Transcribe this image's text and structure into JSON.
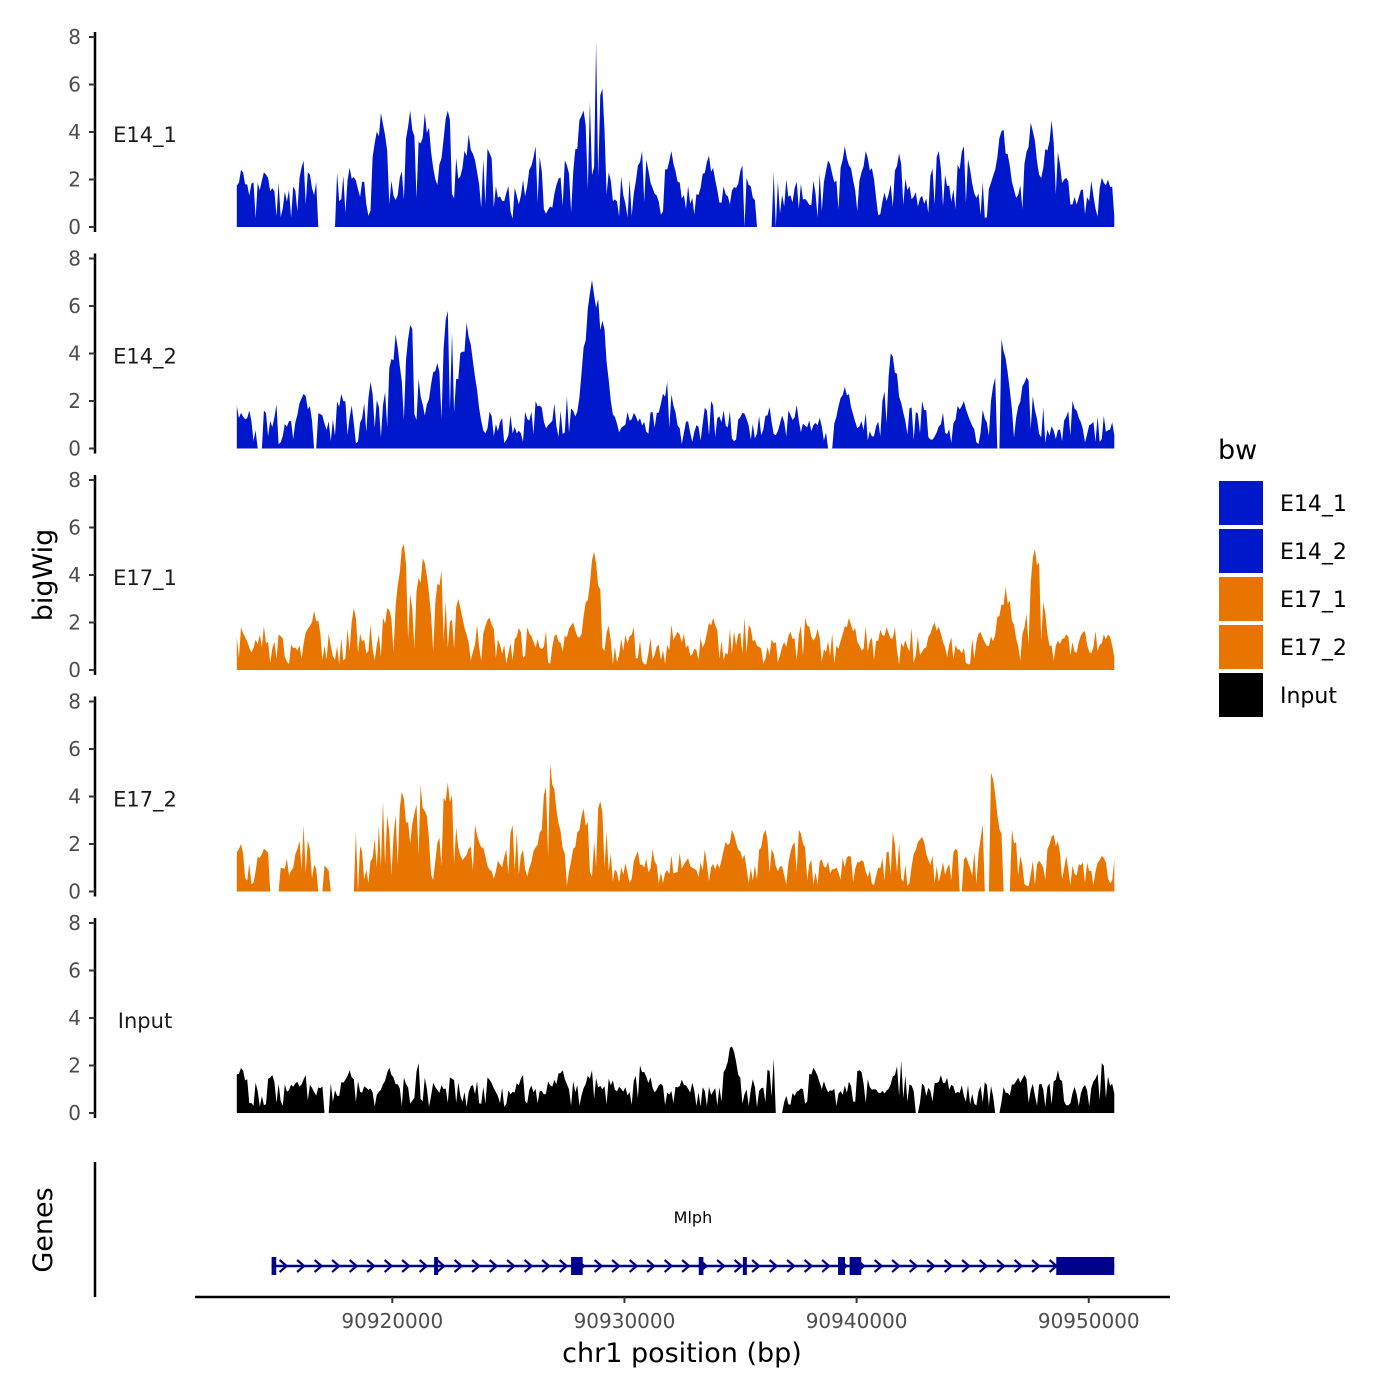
{
  "chart_data": {
    "type": "area",
    "xlabel": "chr1 position (bp)",
    "ylabel": "bigWig",
    "genes_label": "Genes",
    "xlim": [
      90911500,
      90953500
    ],
    "x_ticks": [
      90920000,
      90930000,
      90940000,
      90950000
    ],
    "x_tick_labels": [
      "90920000",
      "90930000",
      "90940000",
      "90950000"
    ],
    "ylim": [
      0,
      8
    ],
    "y_ticks": [
      0,
      2,
      4,
      6,
      8
    ],
    "y_tick_labels": [
      "0",
      "2",
      "4",
      "6",
      "8"
    ],
    "region": [
      90913300,
      90951100
    ],
    "legend": {
      "title": "bw",
      "entries": [
        {
          "name": "E14_1",
          "color": "#0018CC"
        },
        {
          "name": "E14_2",
          "color": "#0018CC"
        },
        {
          "name": "E17_1",
          "color": "#E87500"
        },
        {
          "name": "E17_2",
          "color": "#E87500"
        },
        {
          "name": "Input",
          "color": "#000000"
        }
      ]
    },
    "tracks": [
      {
        "name": "E14_1",
        "color": "#0018CC",
        "peaks": [
          [
            90913500,
            2.4
          ],
          [
            90914500,
            2.3
          ],
          [
            90916200,
            2.8
          ],
          [
            90918200,
            2.5
          ],
          [
            90919500,
            4.8
          ],
          [
            90920800,
            4.9
          ],
          [
            90921400,
            4.8
          ],
          [
            90922400,
            4.9
          ],
          [
            90923300,
            3.9
          ],
          [
            90924100,
            3.3
          ],
          [
            90926200,
            3.4
          ],
          [
            90927400,
            2.8
          ],
          [
            90928200,
            4.9
          ],
          [
            90928800,
            7.8
          ],
          [
            90930800,
            3.2
          ],
          [
            90932000,
            3.2
          ],
          [
            90933600,
            3.0
          ],
          [
            90935100,
            2.6
          ],
          [
            90936400,
            2.3
          ],
          [
            90938800,
            2.8
          ],
          [
            90939500,
            3.4
          ],
          [
            90940400,
            3.2
          ],
          [
            90941800,
            3.1
          ],
          [
            90943500,
            3.2
          ],
          [
            90944600,
            3.4
          ],
          [
            90946300,
            4.1
          ],
          [
            90947500,
            4.4
          ],
          [
            90948400,
            4.5
          ],
          [
            90950800,
            2.0
          ]
        ],
        "gaps": [
          [
            90916800,
            90917600
          ],
          [
            90935000,
            90935200
          ],
          [
            90935700,
            90936600
          ]
        ],
        "base": 0.7,
        "noise": 1.8
      },
      {
        "name": "E14_2",
        "color": "#0018CC",
        "peaks": [
          [
            90913500,
            1.5
          ],
          [
            90914500,
            1.6
          ],
          [
            90916200,
            2.3
          ],
          [
            90917800,
            2.3
          ],
          [
            90919100,
            2.8
          ],
          [
            90920100,
            4.8
          ],
          [
            90920800,
            5.2
          ],
          [
            90921900,
            3.6
          ],
          [
            90922400,
            5.8
          ],
          [
            90923200,
            5.3
          ],
          [
            90926200,
            2.0
          ],
          [
            90927500,
            2.2
          ],
          [
            90928600,
            7.1
          ],
          [
            90928900,
            6.3
          ],
          [
            90930400,
            1.5
          ],
          [
            90931800,
            2.8
          ],
          [
            90933700,
            2.0
          ],
          [
            90935100,
            1.5
          ],
          [
            90937100,
            1.6
          ],
          [
            90939500,
            2.6
          ],
          [
            90941500,
            4.0
          ],
          [
            90942800,
            2.0
          ],
          [
            90944600,
            2.0
          ],
          [
            90946200,
            4.6
          ],
          [
            90947300,
            3.0
          ],
          [
            90949300,
            2.0
          ],
          [
            90950900,
            0.8
          ]
        ],
        "gaps": [
          [
            90914200,
            90914400
          ],
          [
            90916600,
            90916800
          ],
          [
            90938700,
            90939000
          ],
          [
            90946000,
            90946300
          ]
        ],
        "base": 0.5,
        "noise": 1.6
      },
      {
        "name": "E17_1",
        "color": "#E87500",
        "peaks": [
          [
            90913500,
            1.8
          ],
          [
            90915100,
            1.5
          ],
          [
            90916600,
            2.5
          ],
          [
            90918300,
            2.6
          ],
          [
            90919800,
            2.6
          ],
          [
            90920500,
            5.3
          ],
          [
            90921300,
            4.7
          ],
          [
            90922100,
            4.2
          ],
          [
            90922800,
            3.0
          ],
          [
            90924200,
            2.2
          ],
          [
            90925800,
            1.8
          ],
          [
            90927800,
            2.0
          ],
          [
            90928700,
            5.0
          ],
          [
            90930400,
            1.8
          ],
          [
            90932300,
            1.6
          ],
          [
            90933800,
            2.2
          ],
          [
            90935200,
            2.2
          ],
          [
            90937800,
            2.2
          ],
          [
            90939700,
            2.2
          ],
          [
            90941300,
            1.8
          ],
          [
            90943400,
            2.0
          ],
          [
            90945300,
            1.6
          ],
          [
            90946400,
            3.5
          ],
          [
            90947700,
            5.1
          ],
          [
            90949000,
            1.5
          ],
          [
            90950800,
            1.5
          ]
        ],
        "gaps": [],
        "base": 0.6,
        "noise": 1.4
      },
      {
        "name": "E17_2",
        "color": "#E87500",
        "peaks": [
          [
            90913500,
            2.0
          ],
          [
            90914500,
            1.8
          ],
          [
            90916200,
            2.8
          ],
          [
            90917200,
            1.0
          ],
          [
            90918400,
            2.5
          ],
          [
            90919600,
            3.8
          ],
          [
            90920400,
            4.2
          ],
          [
            90921200,
            4.5
          ],
          [
            90922400,
            4.6
          ],
          [
            90923600,
            2.8
          ],
          [
            90925200,
            2.8
          ],
          [
            90926400,
            2.6
          ],
          [
            90926800,
            5.4
          ],
          [
            90928200,
            3.5
          ],
          [
            90929000,
            3.8
          ],
          [
            90930500,
            1.5
          ],
          [
            90932700,
            1.4
          ],
          [
            90934600,
            2.6
          ],
          [
            90936100,
            2.6
          ],
          [
            90937500,
            2.6
          ],
          [
            90939700,
            1.5
          ],
          [
            90941600,
            2.5
          ],
          [
            90942800,
            2.3
          ],
          [
            90944300,
            1.8
          ],
          [
            90945800,
            5.0
          ],
          [
            90946700,
            2.6
          ],
          [
            90948500,
            2.4
          ],
          [
            90950600,
            1.5
          ]
        ],
        "gaps": [
          [
            90914700,
            90915100
          ],
          [
            90916800,
            90917000
          ],
          [
            90917300,
            90918000
          ],
          [
            90918000,
            90918600
          ],
          [
            90944400,
            90944600
          ],
          [
            90945500,
            90945700
          ],
          [
            90946300,
            90946600
          ]
        ],
        "base": 0.6,
        "noise": 1.3
      },
      {
        "name": "Input",
        "color": "#000000",
        "peaks": [
          [
            90913500,
            1.9
          ],
          [
            90914800,
            1.6
          ],
          [
            90916300,
            1.6
          ],
          [
            90918200,
            1.8
          ],
          [
            90919900,
            1.9
          ],
          [
            90921100,
            2.1
          ],
          [
            90922500,
            1.5
          ],
          [
            90924100,
            1.5
          ],
          [
            90925600,
            1.6
          ],
          [
            90927300,
            1.8
          ],
          [
            90928600,
            1.8
          ],
          [
            90930700,
            2.0
          ],
          [
            90932500,
            1.4
          ],
          [
            90934600,
            2.8
          ],
          [
            90936400,
            2.3
          ],
          [
            90938100,
            1.9
          ],
          [
            90940100,
            1.8
          ],
          [
            90941900,
            2.2
          ],
          [
            90943600,
            1.6
          ],
          [
            90945500,
            1.3
          ],
          [
            90947200,
            1.6
          ],
          [
            90948700,
            1.8
          ],
          [
            90950600,
            2.1
          ]
        ],
        "gaps": [
          [
            90917000,
            90917300
          ],
          [
            90936500,
            90936800
          ],
          [
            90942500,
            90942700
          ],
          [
            90945900,
            90946200
          ]
        ],
        "base": 0.7,
        "noise": 0.9
      }
    ],
    "genes": [
      {
        "name": "Mlph",
        "strand": "+",
        "start": 90914800,
        "end": 90951100,
        "exons": [
          [
            90914800,
            90915000
          ],
          [
            90921800,
            90921900
          ],
          [
            90927700,
            90928200
          ],
          [
            90933200,
            90933400
          ],
          [
            90935100,
            90935200
          ],
          [
            90939200,
            90939500
          ],
          [
            90939700,
            90940200
          ],
          [
            90948600,
            90951100
          ]
        ]
      }
    ]
  }
}
